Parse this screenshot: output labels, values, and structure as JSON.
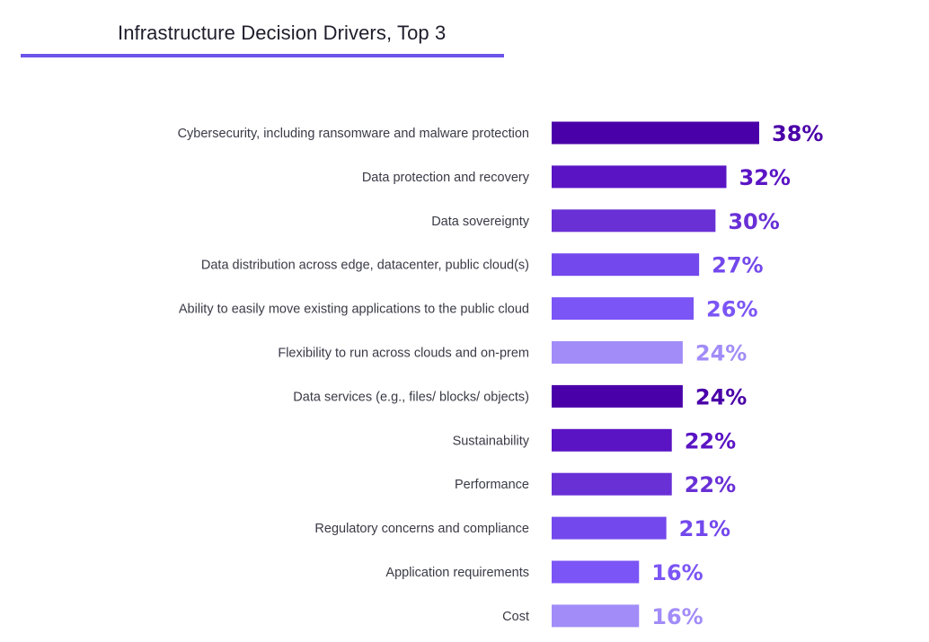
{
  "colors": {
    "title_rule": "#6b54ea",
    "palette": [
      "#4a00a8",
      "#5a14c4",
      "#6930d6",
      "#7348ec",
      "#7b55f5",
      "#a28cf8"
    ]
  },
  "chart_data": {
    "type": "bar",
    "orientation": "horizontal",
    "title": "Infrastructure Decision Drivers, Top 3",
    "xlabel": "",
    "ylabel": "",
    "xlim": [
      0,
      38
    ],
    "grid": false,
    "legend": "none",
    "categories": [
      "Cybersecurity, including ransomware and malware protection",
      "Data protection and recovery",
      "Data sovereignty",
      "Data distribution across edge, datacenter, public cloud(s)",
      "Ability to easily move existing applications to the public cloud",
      "Flexibility to run across clouds and on-prem",
      "Data services (e.g., files/ blocks/ objects)",
      "Sustainability",
      "Performance",
      "Regulatory concerns and compliance",
      "Application requirements",
      "Cost"
    ],
    "values": [
      38,
      32,
      30,
      27,
      26,
      24,
      24,
      22,
      22,
      21,
      16,
      16
    ],
    "value_labels": [
      "38%",
      "32%",
      "30%",
      "27%",
      "26%",
      "24%",
      "24%",
      "22%",
      "22%",
      "21%",
      "16%",
      "16%"
    ]
  }
}
